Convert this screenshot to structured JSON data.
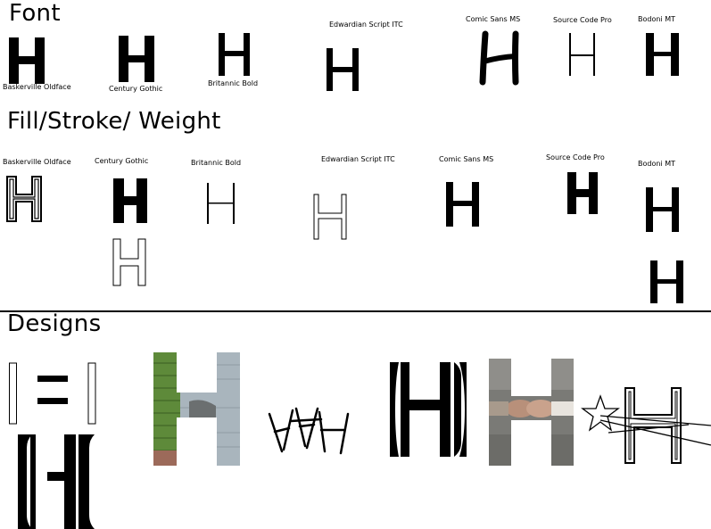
{
  "sections": {
    "font": {
      "heading": "Font",
      "labels": [
        "Baskerville Oldface",
        "Century Gothic",
        "Britannic Bold",
        "Edwardian Script ITC",
        "Comic Sans MS",
        "Source Code Pro",
        "Bodoni MT"
      ]
    },
    "fill_stroke_weight": {
      "heading": "Fill/Stroke/ Weight",
      "labels": [
        "Baskerville Oldface",
        "Century Gothic",
        "Britannic Bold",
        "Edwardian Script ITC",
        "Comic Sans MS",
        "Source Code Pro",
        "Bodoni MT"
      ]
    },
    "designs": {
      "heading": "Designs"
    }
  },
  "colors": {
    "ink": "#000000",
    "brick_green": "#5e8a3a",
    "wall_grey": "#a9b5bd",
    "photo_skin": "#b8907a",
    "photo_bg": "#7a7a76"
  }
}
